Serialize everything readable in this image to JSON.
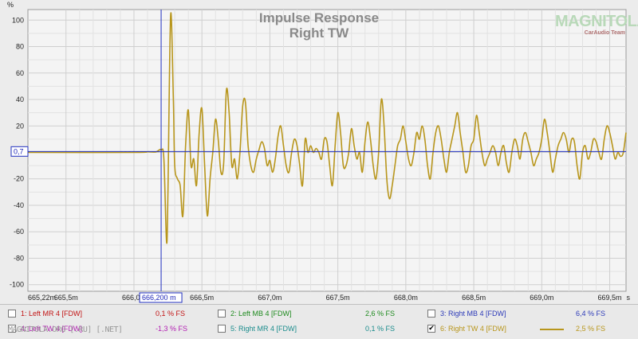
{
  "chart_data": {
    "type": "line",
    "title": "Impulse Response",
    "subtitle": "Right TW",
    "y_unit": "%",
    "x_unit": "s",
    "ylim": [
      -105,
      108
    ],
    "xlim": [
      665.22,
      669.62
    ],
    "y_ticks": [
      100,
      80,
      60,
      40,
      20,
      0,
      -20,
      -40,
      -60,
      -80,
      -100
    ],
    "x_ticks": [
      {
        "value": 665.22,
        "label": "665,22m"
      },
      {
        "value": 665.5,
        "label": "665,5m"
      },
      {
        "value": 666.0,
        "label": "666,0m"
      },
      {
        "value": 666.5,
        "label": "666,5m"
      },
      {
        "value": 667.0,
        "label": "667,0m"
      },
      {
        "value": 667.5,
        "label": "667,5m"
      },
      {
        "value": 668.0,
        "label": "668,0m"
      },
      {
        "value": 668.5,
        "label": "668,5m"
      },
      {
        "value": 669.0,
        "label": "669,0m"
      },
      {
        "value": 669.5,
        "label": "669,5m"
      }
    ],
    "cursor": {
      "x_value": 666.2,
      "x_label": "666,200 m",
      "y_value": 0.7,
      "y_label": "0,7"
    },
    "grid": true,
    "series": [
      {
        "name": "6: Right TW 4 [FDW]",
        "color": "#b8961c",
        "x": [
          665.22,
          666.0,
          666.1,
          666.16,
          666.2,
          666.22,
          666.24,
          666.25,
          666.27,
          666.29,
          666.3,
          666.32,
          666.34,
          666.36,
          666.38,
          666.4,
          666.42,
          666.44,
          666.46,
          666.48,
          666.5,
          666.52,
          666.54,
          666.56,
          666.58,
          666.6,
          666.62,
          666.64,
          666.66,
          666.68,
          666.7,
          666.72,
          666.74,
          666.76,
          666.78,
          666.8,
          666.82,
          666.84,
          666.86,
          666.88,
          666.9,
          666.92,
          666.94,
          666.96,
          666.98,
          667.0,
          667.02,
          667.04,
          667.06,
          667.08,
          667.1,
          667.12,
          667.14,
          667.16,
          667.18,
          667.2,
          667.22,
          667.24,
          667.26,
          667.28,
          667.3,
          667.32,
          667.34,
          667.36,
          667.38,
          667.4,
          667.42,
          667.44,
          667.46,
          667.48,
          667.5,
          667.52,
          667.54,
          667.56,
          667.58,
          667.6,
          667.62,
          667.64,
          667.66,
          667.68,
          667.7,
          667.72,
          667.74,
          667.76,
          667.78,
          667.8,
          667.82,
          667.84,
          667.86,
          667.88,
          667.9,
          667.92,
          667.94,
          667.96,
          667.98,
          668.0,
          668.02,
          668.04,
          668.06,
          668.08,
          668.1,
          668.12,
          668.14,
          668.16,
          668.18,
          668.2,
          668.22,
          668.24,
          668.26,
          668.28,
          668.3,
          668.32,
          668.34,
          668.36,
          668.38,
          668.4,
          668.42,
          668.44,
          668.46,
          668.48,
          668.5,
          668.52,
          668.54,
          668.56,
          668.58,
          668.6,
          668.62,
          668.64,
          668.66,
          668.68,
          668.7,
          668.72,
          668.74,
          668.76,
          668.78,
          668.8,
          668.82,
          668.84,
          668.86,
          668.88,
          668.9,
          668.92,
          668.94,
          668.96,
          668.98,
          669.0,
          669.02,
          669.04,
          669.06,
          669.08,
          669.1,
          669.12,
          669.14,
          669.16,
          669.18,
          669.2,
          669.22,
          669.24,
          669.26,
          669.28,
          669.3,
          669.32,
          669.34,
          669.36,
          669.38,
          669.4,
          669.42,
          669.44,
          669.46,
          669.48,
          669.5,
          669.52,
          669.54,
          669.56,
          669.58,
          669.6,
          669.62
        ],
        "y": [
          0,
          0,
          0.5,
          0.3,
          2,
          -5,
          -68,
          -30,
          104,
          40,
          -10,
          -20,
          -25,
          -48,
          5,
          32,
          -10,
          -5,
          -25,
          15,
          33,
          -10,
          -48,
          -20,
          0,
          25,
          10,
          -15,
          -8,
          47,
          30,
          -10,
          -5,
          -20,
          0,
          35,
          38,
          5,
          -10,
          -15,
          -5,
          2,
          8,
          3,
          -10,
          -6,
          -15,
          -5,
          12,
          20,
          5,
          -10,
          -15,
          0,
          10,
          5,
          -10,
          -25,
          10,
          0,
          5,
          0,
          3,
          0,
          -5,
          10,
          8,
          -10,
          -25,
          5,
          30,
          15,
          -10,
          -10,
          0,
          18,
          5,
          -5,
          0,
          -15,
          8,
          23,
          10,
          -10,
          -20,
          0,
          40,
          20,
          -20,
          -35,
          -25,
          -10,
          5,
          10,
          20,
          8,
          -5,
          -10,
          0,
          15,
          10,
          20,
          10,
          -10,
          -20,
          0,
          15,
          20,
          10,
          -5,
          -15,
          0,
          10,
          20,
          30,
          15,
          0,
          -15,
          -10,
          5,
          10,
          28,
          15,
          0,
          -10,
          -5,
          0,
          5,
          0,
          -10,
          0,
          5,
          -8,
          -15,
          0,
          10,
          5,
          -5,
          10,
          15,
          8,
          0,
          -10,
          -5,
          0,
          10,
          25,
          15,
          0,
          -15,
          -5,
          5,
          10,
          15,
          10,
          0,
          10,
          8,
          -10,
          -20,
          0,
          5,
          -5,
          0,
          10,
          8,
          0,
          -5,
          10,
          20,
          15,
          5,
          -5,
          0,
          -3,
          0,
          15
        ]
      }
    ]
  },
  "legend": [
    {
      "num": "1",
      "label": "1: Left MR 4 [FDW]",
      "value": "0,1 % FS",
      "color": "#c21414",
      "checked": false
    },
    {
      "num": "2",
      "label": "2: Left MB 4 [FDW]",
      "value": "2,6 % FS",
      "color": "#1e8a1e",
      "checked": false
    },
    {
      "num": "3",
      "label": "3: Right MB 4 [FDW]",
      "value": "6,4 % FS",
      "color": "#2c3ab8",
      "checked": false
    },
    {
      "num": "4",
      "label": "4: Left TW 4 [FDW]",
      "value": "-1,3 % FS",
      "color": "#b21eb2",
      "checked": false
    },
    {
      "num": "5",
      "label": "5: Right MR 4 [FDW]",
      "value": "0,1 % FS",
      "color": "#1a8c8c",
      "checked": false
    },
    {
      "num": "6",
      "label": "6: Right TW 4 [FDW]",
      "value": "2,5 % FS",
      "color": "#b8961c",
      "checked": true
    }
  ],
  "watermark": {
    "logo_main": "MAGNITOLA",
    "logo_sub": "CarAudio Team",
    "footer": "MAGNITOLA.ORG [.RU] [.NET]"
  }
}
